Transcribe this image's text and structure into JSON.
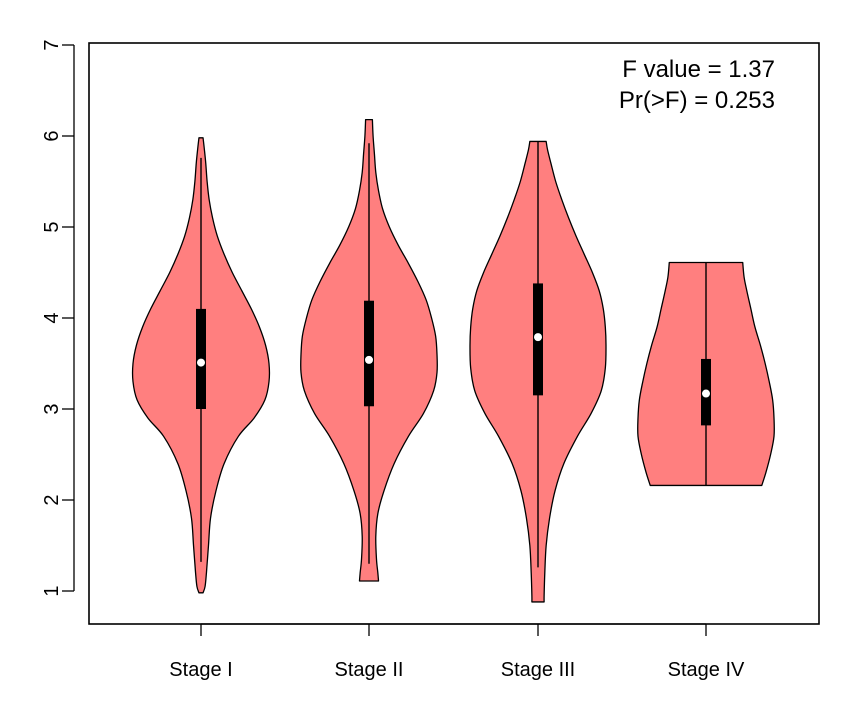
{
  "chart_data": {
    "type": "violin",
    "categories": [
      "Stage I",
      "Stage II",
      "Stage III",
      "Stage IV"
    ],
    "ylim": [
      0.65,
      7.0
    ],
    "yticks": [
      "1",
      "2",
      "3",
      "4",
      "5",
      "6",
      "7"
    ],
    "annotations": [
      "F value = 1.37",
      "Pr(>F) = 0.253"
    ],
    "fill_color": "#FF7F7F",
    "box_color": "#000000",
    "median_color": "#ffffff",
    "legend": "none",
    "grid": false,
    "violins": [
      {
        "category": "Stage I",
        "min": 0.98,
        "max": 5.98,
        "whisker_low": 1.32,
        "whisker_high": 5.76,
        "q1": 3.0,
        "median": 3.51,
        "q3": 4.1,
        "density": [
          [
            0.98,
            0.03
          ],
          [
            1.05,
            0.06
          ],
          [
            1.2,
            0.08
          ],
          [
            1.5,
            0.11
          ],
          [
            1.8,
            0.14
          ],
          [
            2.1,
            0.22
          ],
          [
            2.4,
            0.34
          ],
          [
            2.7,
            0.55
          ],
          [
            2.9,
            0.78
          ],
          [
            3.1,
            0.94
          ],
          [
            3.3,
            1.0
          ],
          [
            3.5,
            1.0
          ],
          [
            3.7,
            0.95
          ],
          [
            3.9,
            0.86
          ],
          [
            4.1,
            0.74
          ],
          [
            4.3,
            0.6
          ],
          [
            4.5,
            0.46
          ],
          [
            4.7,
            0.34
          ],
          [
            4.9,
            0.24
          ],
          [
            5.1,
            0.17
          ],
          [
            5.3,
            0.12
          ],
          [
            5.5,
            0.09
          ],
          [
            5.7,
            0.07
          ],
          [
            5.85,
            0.05
          ],
          [
            5.98,
            0.03
          ]
        ]
      },
      {
        "category": "Stage II",
        "min": 1.11,
        "max": 6.18,
        "whisker_low": 1.3,
        "whisker_high": 5.92,
        "q1": 3.03,
        "median": 3.54,
        "q3": 4.19,
        "density": [
          [
            1.11,
            0.14
          ],
          [
            1.2,
            0.13
          ],
          [
            1.35,
            0.11
          ],
          [
            1.6,
            0.1
          ],
          [
            1.85,
            0.13
          ],
          [
            2.1,
            0.22
          ],
          [
            2.4,
            0.37
          ],
          [
            2.7,
            0.58
          ],
          [
            2.95,
            0.8
          ],
          [
            3.2,
            0.95
          ],
          [
            3.4,
            1.0
          ],
          [
            3.6,
            1.0
          ],
          [
            3.8,
            0.98
          ],
          [
            4.0,
            0.92
          ],
          [
            4.2,
            0.84
          ],
          [
            4.4,
            0.72
          ],
          [
            4.6,
            0.58
          ],
          [
            4.8,
            0.43
          ],
          [
            5.0,
            0.3
          ],
          [
            5.2,
            0.2
          ],
          [
            5.4,
            0.14
          ],
          [
            5.6,
            0.1
          ],
          [
            5.8,
            0.08
          ],
          [
            6.0,
            0.06
          ],
          [
            6.18,
            0.05
          ]
        ]
      },
      {
        "category": "Stage III",
        "min": 0.88,
        "max": 5.94,
        "whisker_low": 1.26,
        "whisker_high": 5.94,
        "q1": 3.15,
        "median": 3.79,
        "q3": 4.38,
        "density": [
          [
            0.88,
            0.09
          ],
          [
            0.95,
            0.09
          ],
          [
            1.2,
            0.1
          ],
          [
            1.5,
            0.12
          ],
          [
            1.8,
            0.17
          ],
          [
            2.1,
            0.25
          ],
          [
            2.4,
            0.38
          ],
          [
            2.7,
            0.58
          ],
          [
            2.95,
            0.78
          ],
          [
            3.2,
            0.93
          ],
          [
            3.45,
            0.99
          ],
          [
            3.7,
            1.0
          ],
          [
            3.9,
            0.99
          ],
          [
            4.1,
            0.96
          ],
          [
            4.3,
            0.9
          ],
          [
            4.5,
            0.8
          ],
          [
            4.7,
            0.68
          ],
          [
            4.9,
            0.56
          ],
          [
            5.1,
            0.45
          ],
          [
            5.3,
            0.35
          ],
          [
            5.5,
            0.26
          ],
          [
            5.7,
            0.19
          ],
          [
            5.85,
            0.14
          ],
          [
            5.94,
            0.12
          ]
        ]
      },
      {
        "category": "Stage IV",
        "min": 2.16,
        "max": 4.61,
        "whisker_low": 2.16,
        "whisker_high": 4.61,
        "q1": 2.82,
        "median": 3.17,
        "q3": 3.55,
        "density": [
          [
            2.16,
            0.82
          ],
          [
            2.3,
            0.88
          ],
          [
            2.5,
            0.95
          ],
          [
            2.7,
            1.0
          ],
          [
            2.9,
            1.0
          ],
          [
            3.1,
            0.98
          ],
          [
            3.3,
            0.93
          ],
          [
            3.5,
            0.87
          ],
          [
            3.7,
            0.8
          ],
          [
            3.9,
            0.72
          ],
          [
            4.1,
            0.66
          ],
          [
            4.3,
            0.6
          ],
          [
            4.45,
            0.56
          ],
          [
            4.61,
            0.54
          ]
        ]
      }
    ]
  }
}
